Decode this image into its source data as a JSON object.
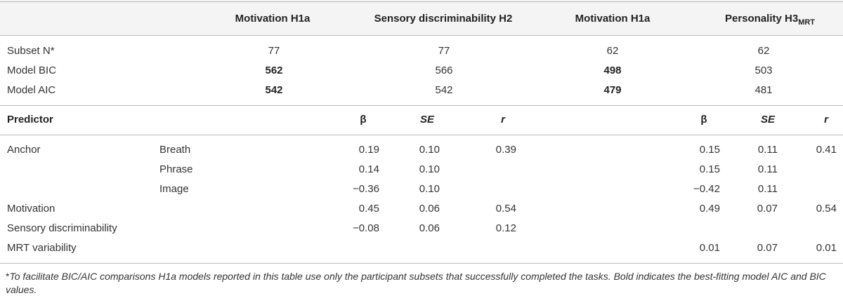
{
  "header": {
    "cols": [
      "Motivation H1a",
      "Sensory discriminability H2",
      "Motivation H1a",
      "Personality H3"
    ],
    "subscript": "MRT"
  },
  "model_rows": [
    {
      "label": "Subset N*",
      "values": [
        "77",
        "77",
        "62",
        "62"
      ],
      "bold": [
        false,
        false,
        false,
        false
      ]
    },
    {
      "label": "Model BIC",
      "values": [
        "562",
        "566",
        "498",
        "503"
      ],
      "bold": [
        true,
        false,
        true,
        false
      ]
    },
    {
      "label": "Model AIC",
      "values": [
        "542",
        "542",
        "479",
        "481"
      ],
      "bold": [
        true,
        false,
        true,
        false
      ]
    }
  ],
  "predictor_header": {
    "label": "Predictor",
    "beta": "β",
    "se": "SE",
    "r": "r"
  },
  "predictor_rows": [
    {
      "label": "Anchor",
      "sub": "Breath",
      "h2": [
        "0.19",
        "0.10",
        "0.39"
      ],
      "h3": [
        "0.15",
        "0.11",
        "0.41"
      ]
    },
    {
      "label": "",
      "sub": "Phrase",
      "h2": [
        "0.14",
        "0.10",
        ""
      ],
      "h3": [
        "0.15",
        "0.11",
        ""
      ]
    },
    {
      "label": "",
      "sub": "Image",
      "h2": [
        "−0.36",
        "0.10",
        ""
      ],
      "h3": [
        "−0.42",
        "0.11",
        ""
      ]
    },
    {
      "label": "Motivation",
      "sub": "",
      "h2": [
        "0.45",
        "0.06",
        "0.54"
      ],
      "h3": [
        "0.49",
        "0.07",
        "0.54"
      ]
    },
    {
      "label": "Sensory discriminability",
      "sub": "",
      "h2": [
        "−0.08",
        "0.06",
        "0.12"
      ],
      "h3": [
        "",
        "",
        ""
      ]
    },
    {
      "label": "MRT variability",
      "sub": "",
      "h2": [
        "",
        "",
        ""
      ],
      "h3": [
        "0.01",
        "0.07",
        "0.01"
      ]
    }
  ],
  "footnote": {
    "star": "*",
    "text": "To facilitate BIC/AIC comparisons H1a models reported in this table use only the participant subsets that successfully completed the tasks. Bold indicates the best-fitting model AIC and BIC values."
  }
}
